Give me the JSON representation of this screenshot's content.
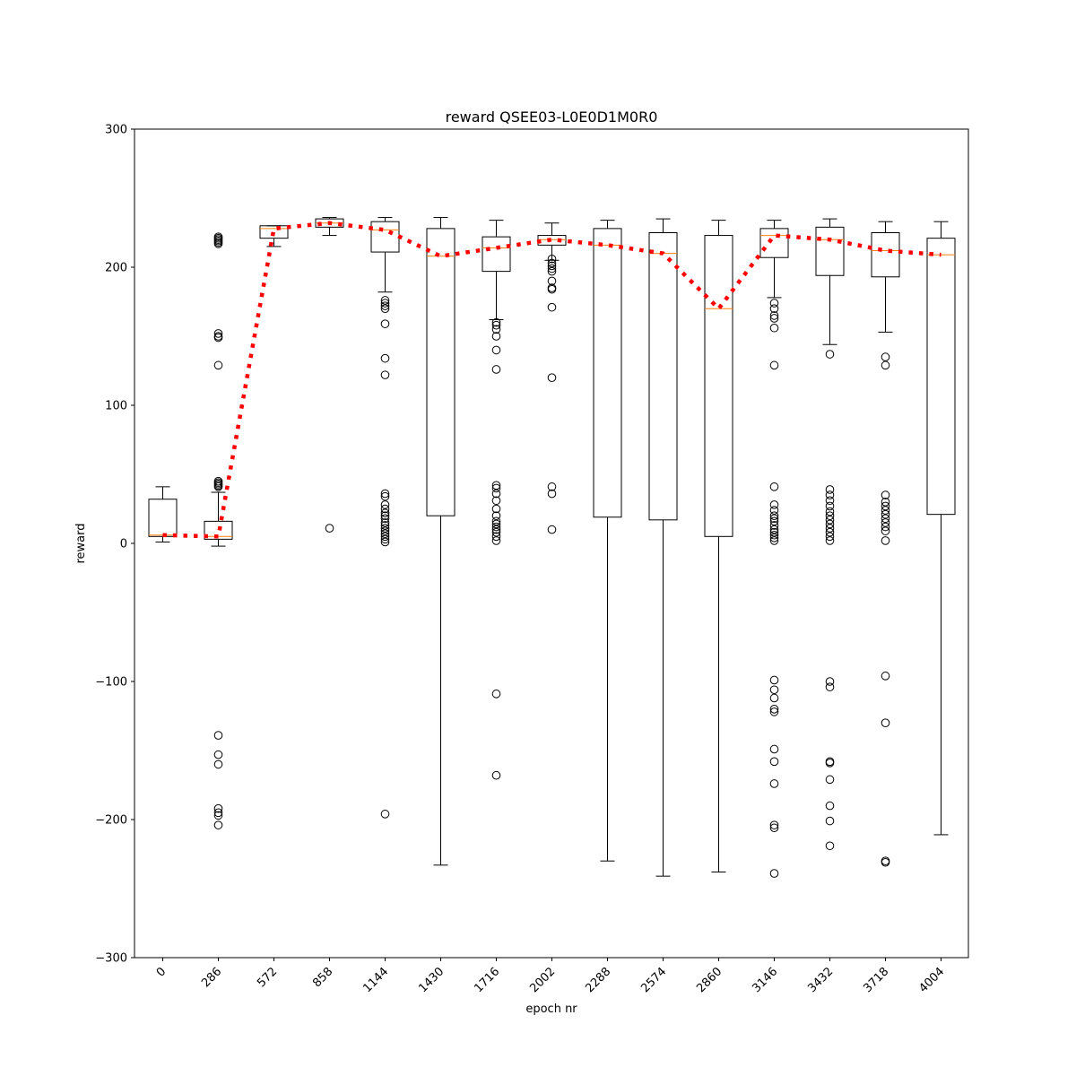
{
  "chart_data": {
    "type": "box",
    "title": "reward QSEE03-L0E0D1M0R0",
    "xlabel": "epoch nr",
    "ylabel": "reward",
    "ylim": [
      -300,
      300
    ],
    "yticks": [
      -300,
      -200,
      -100,
      0,
      100,
      200,
      300
    ],
    "ytick_labels": [
      "−300",
      "−200",
      "−100",
      "0",
      "100",
      "200",
      "300"
    ],
    "categories": [
      "0",
      "286",
      "572",
      "858",
      "1144",
      "1430",
      "1716",
      "2002",
      "2288",
      "2574",
      "2860",
      "3146",
      "3432",
      "3718",
      "4004"
    ],
    "boxes": [
      {
        "whisker_low": 1,
        "q1": 5,
        "median": 6,
        "q3": 32,
        "whisker_high": 41,
        "outliers": []
      },
      {
        "whisker_low": -2,
        "q1": 3,
        "median": 5,
        "q3": 16,
        "whisker_high": 37,
        "outliers": [
          222,
          221,
          220,
          219,
          218,
          217,
          152,
          150,
          149,
          129,
          45,
          44,
          43,
          42,
          41,
          -139,
          -153,
          -160,
          -192,
          -195,
          -197,
          -204
        ]
      },
      {
        "whisker_low": 215,
        "q1": 221,
        "median": 228,
        "q3": 230,
        "whisker_high": 230,
        "outliers": []
      },
      {
        "whisker_low": 223,
        "q1": 229,
        "median": 232,
        "q3": 235,
        "whisker_high": 236,
        "outliers": [
          11
        ]
      },
      {
        "whisker_low": 182,
        "q1": 211,
        "median": 227,
        "q3": 233,
        "whisker_high": 236,
        "outliers": [
          176,
          174,
          172,
          170,
          159,
          134,
          122,
          36,
          34,
          28,
          25,
          22,
          20,
          18,
          15,
          13,
          11,
          9,
          7,
          5,
          3,
          1,
          -196
        ]
      },
      {
        "whisker_low": -233,
        "q1": 20,
        "median": 208,
        "q3": 228,
        "whisker_high": 236,
        "outliers": []
      },
      {
        "whisker_low": 162,
        "q1": 197,
        "median": 214,
        "q3": 222,
        "whisker_high": 234,
        "outliers": [
          160,
          158,
          155,
          150,
          140,
          126,
          42,
          40,
          36,
          31,
          25,
          20,
          16,
          14,
          12,
          10,
          8,
          5,
          2,
          -109,
          -168
        ]
      },
      {
        "whisker_low": 205,
        "q1": 216,
        "median": 220,
        "q3": 223,
        "whisker_high": 232,
        "outliers": [
          206,
          203,
          201,
          199,
          197,
          190,
          185,
          184,
          171,
          120,
          41,
          36,
          10
        ]
      },
      {
        "whisker_low": -230,
        "q1": 19,
        "median": 216,
        "q3": 228,
        "whisker_high": 234,
        "outliers": []
      },
      {
        "whisker_low": -241,
        "q1": 17,
        "median": 210,
        "q3": 225,
        "whisker_high": 235,
        "outliers": []
      },
      {
        "whisker_low": -238,
        "q1": 5,
        "median": 170,
        "q3": 223,
        "whisker_high": 234,
        "outliers": []
      },
      {
        "whisker_low": 178,
        "q1": 207,
        "median": 223,
        "q3": 228,
        "whisker_high": 234,
        "outliers": [
          174,
          170,
          165,
          163,
          156,
          129,
          41,
          28,
          24,
          20,
          18,
          16,
          13,
          10,
          8,
          6,
          4,
          2,
          -99,
          -106,
          -112,
          -120,
          -122,
          -149,
          -158,
          -174,
          -204,
          -206,
          -239
        ]
      },
      {
        "whisker_low": 144,
        "q1": 194,
        "median": 220,
        "q3": 229,
        "whisker_high": 235,
        "outliers": [
          137,
          39,
          35,
          31,
          27,
          23,
          20,
          17,
          14,
          11,
          8,
          5,
          2,
          -100,
          -104,
          -158,
          -159,
          -171,
          -190,
          -201,
          -219
        ]
      },
      {
        "whisker_low": 153,
        "q1": 193,
        "median": 212,
        "q3": 225,
        "whisker_high": 233,
        "outliers": [
          135,
          129,
          35,
          30,
          27,
          24,
          21,
          18,
          15,
          12,
          9,
          2,
          -96,
          -130,
          -230,
          -231
        ]
      },
      {
        "whisker_low": -211,
        "q1": 21,
        "median": 209,
        "q3": 221,
        "whisker_high": 233,
        "outliers": []
      }
    ],
    "median_line": {
      "values": [
        6,
        5,
        228,
        232,
        227,
        208,
        214,
        220,
        216,
        210,
        170,
        223,
        220,
        212,
        209
      ],
      "color": "#ff0000",
      "style": "dotted"
    },
    "colors": {
      "box": "#000000",
      "median": "#ff7f0e",
      "trend": "#ff0000",
      "outlier": "#000000"
    }
  }
}
